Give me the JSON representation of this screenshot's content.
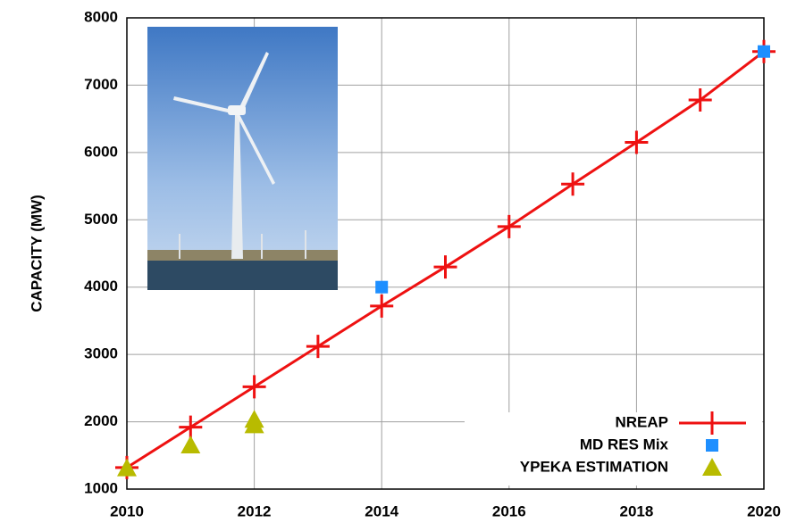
{
  "chart_data": {
    "type": "line",
    "y_label": "CAPACITY (MW)",
    "xlim": [
      2010,
      2020
    ],
    "xticks": [
      2010,
      2012,
      2014,
      2016,
      2018,
      2020
    ],
    "ylim": [
      1000,
      8000
    ],
    "yticks": [
      1000,
      2000,
      3000,
      4000,
      5000,
      6000,
      7000,
      8000
    ],
    "grid": true,
    "legend": "lower right",
    "series": [
      {
        "name": "NREAP",
        "color": "#ee1111",
        "marker": "plus",
        "line": "solid",
        "x": [
          2010,
          2011,
          2012,
          2013,
          2014,
          2015,
          2016,
          2017,
          2018,
          2019,
          2020
        ],
        "values": [
          1320,
          1920,
          2520,
          3120,
          3720,
          4300,
          4900,
          5530,
          6150,
          6780,
          7500
        ]
      },
      {
        "name": "MD RES Mix",
        "color": "#1e8fff",
        "marker": "square",
        "x": [
          2014,
          2020
        ],
        "values": [
          4000,
          7500
        ]
      },
      {
        "name": "YPEKA ESTIMATION",
        "color": "#b8bb00",
        "marker": "triangle",
        "x": [
          2010,
          2011,
          2012,
          2012
        ],
        "values": [
          1310,
          1650,
          1950,
          2030
        ]
      }
    ]
  }
}
